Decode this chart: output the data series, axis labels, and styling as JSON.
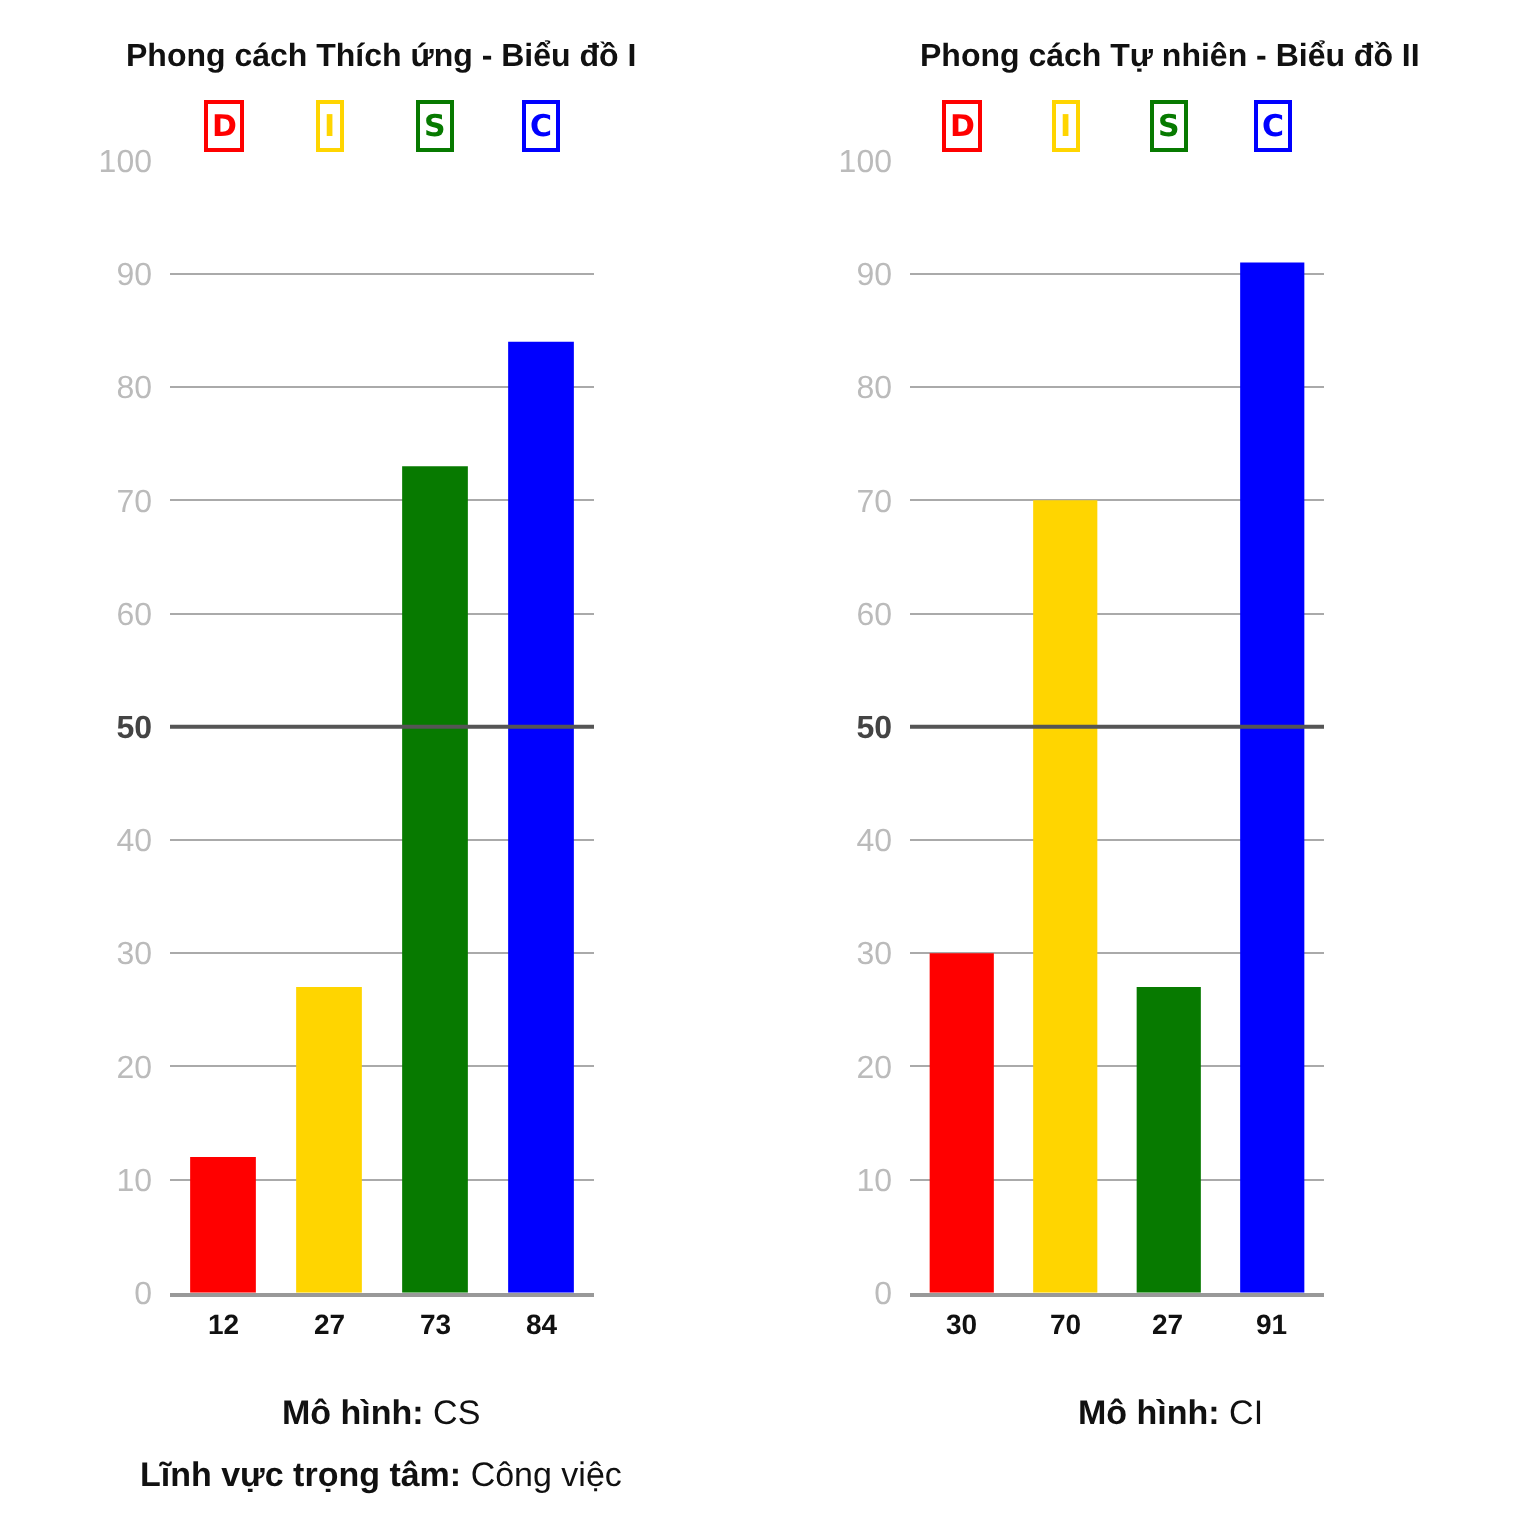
{
  "chart_data": [
    {
      "type": "bar",
      "title": "Phong cách Thích ứng - Biểu đồ I",
      "categories": [
        "D",
        "I",
        "S",
        "C"
      ],
      "values": [
        12,
        27,
        73,
        84
      ],
      "colors": [
        "#ff0000",
        "#ffd500",
        "#077a00",
        "#0000ff"
      ],
      "data_labels": true,
      "ylim": [
        0,
        100
      ],
      "yticks": [
        0,
        10,
        20,
        30,
        40,
        50,
        60,
        70,
        80,
        90,
        100
      ],
      "grid": "y",
      "ref_lines": [
        {
          "axis": "y",
          "value": 50,
          "color": "#555555"
        }
      ],
      "annotations": [
        "Mô hình: CS",
        "Lĩnh vực trọng tâm: Công việc"
      ]
    },
    {
      "type": "bar",
      "title": "Phong cách Tự nhiên - Biểu đồ II",
      "categories": [
        "D",
        "I",
        "S",
        "C"
      ],
      "values": [
        30,
        70,
        27,
        91
      ],
      "colors": [
        "#ff0000",
        "#ffd500",
        "#077a00",
        "#0000ff"
      ],
      "data_labels": true,
      "ylim": [
        0,
        100
      ],
      "yticks": [
        0,
        10,
        20,
        30,
        40,
        50,
        60,
        70,
        80,
        90,
        100
      ],
      "grid": "y",
      "ref_lines": [
        {
          "axis": "y",
          "value": 50,
          "color": "#555555"
        }
      ],
      "annotations": [
        "Mô hình: CI"
      ]
    }
  ]
}
